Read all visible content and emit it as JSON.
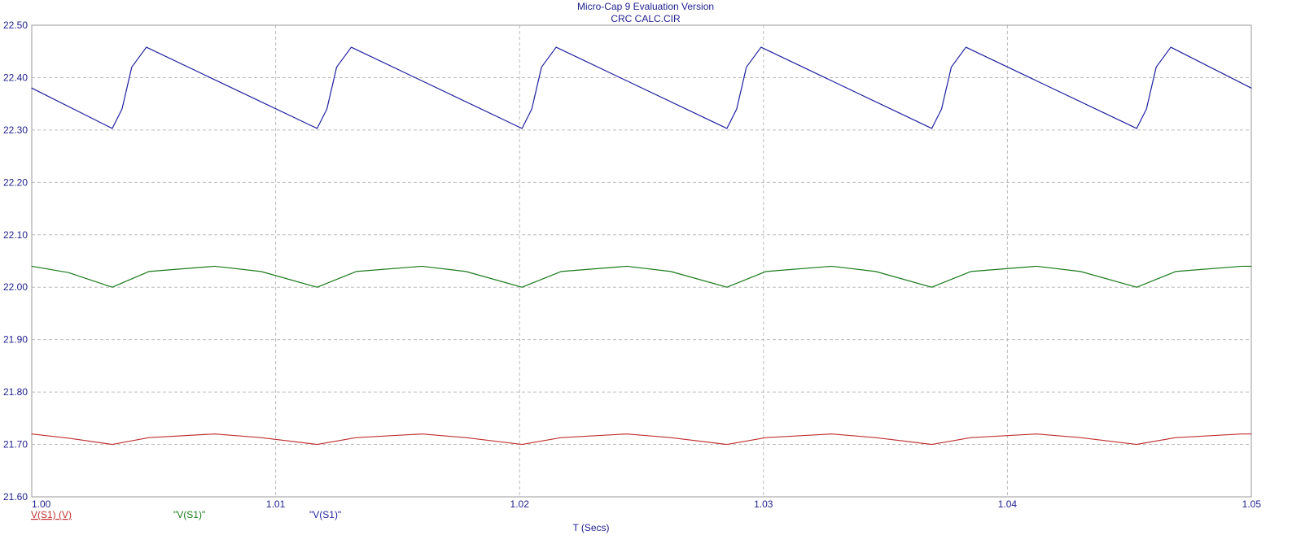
{
  "header": {
    "title": "Micro-Cap 9 Evaluation Version",
    "subtitle": "CRC CALC.CIR"
  },
  "chart_data": {
    "type": "line",
    "title": "Micro-Cap 9 Evaluation Version",
    "subtitle": "CRC CALC.CIR",
    "xlabel": "T (Secs)",
    "ylabel": "",
    "xlim": [
      1.0,
      1.05
    ],
    "ylim": [
      21.6,
      22.5
    ],
    "x_ticks": [
      "1.00",
      "1.01",
      "1.02",
      "1.03",
      "1.04",
      "1.05"
    ],
    "x_tick_values": [
      1.0,
      1.01,
      1.02,
      1.03,
      1.04,
      1.05
    ],
    "y_ticks": [
      "22.50",
      "22.40",
      "22.30",
      "22.20",
      "22.10",
      "22.00",
      "21.90",
      "21.80",
      "21.70",
      "21.60"
    ],
    "y_tick_values": [
      22.5,
      22.4,
      22.3,
      22.2,
      22.1,
      22.0,
      21.9,
      21.8,
      21.7,
      21.6
    ],
    "grid": true,
    "legend": "bottom-left",
    "series": [
      {
        "name": "V(S1) (V)",
        "color": "#c03030",
        "underline": true,
        "x": [
          1.0,
          1.0015,
          1.0033,
          1.0048,
          1.0075,
          1.0094,
          1.0117,
          1.0133,
          1.016,
          1.0178,
          1.0201,
          1.0217,
          1.0244,
          1.0262,
          1.0285,
          1.0301,
          1.0328,
          1.0346,
          1.0369,
          1.0385,
          1.0412,
          1.043,
          1.0453,
          1.0469,
          1.0496,
          1.05
        ],
        "y": [
          21.72,
          21.712,
          21.7,
          21.713,
          21.72,
          21.713,
          21.7,
          21.713,
          21.72,
          21.713,
          21.7,
          21.713,
          21.72,
          21.713,
          21.7,
          21.713,
          21.72,
          21.713,
          21.7,
          21.713,
          21.72,
          21.713,
          21.7,
          21.713,
          21.72,
          21.72
        ]
      },
      {
        "name": "\"V(S1)\"",
        "color": "#1a7a1a",
        "underline": false,
        "x": [
          1.0,
          1.0015,
          1.0033,
          1.0048,
          1.0075,
          1.0094,
          1.0117,
          1.0133,
          1.016,
          1.0178,
          1.0201,
          1.0217,
          1.0244,
          1.0262,
          1.0285,
          1.0301,
          1.0328,
          1.0346,
          1.0369,
          1.0385,
          1.0412,
          1.043,
          1.0453,
          1.0469,
          1.0496,
          1.05
        ],
        "y": [
          22.04,
          22.028,
          22.0,
          22.03,
          22.04,
          22.03,
          22.0,
          22.03,
          22.04,
          22.03,
          22.0,
          22.03,
          22.04,
          22.03,
          22.0,
          22.03,
          22.04,
          22.03,
          22.0,
          22.03,
          22.04,
          22.03,
          22.0,
          22.03,
          22.04,
          22.04
        ]
      },
      {
        "name": "\"V(S1)\"",
        "color": "#1f1fa0",
        "underline": false,
        "x": [
          1.0,
          1.0033,
          1.0037,
          1.0041,
          1.0047,
          1.0117,
          1.0121,
          1.0125,
          1.0131,
          1.0201,
          1.0205,
          1.0209,
          1.0215,
          1.0285,
          1.0289,
          1.0293,
          1.0299,
          1.0369,
          1.0373,
          1.0377,
          1.0383,
          1.0453,
          1.0457,
          1.0461,
          1.0467,
          1.05
        ],
        "y": [
          22.38,
          22.303,
          22.34,
          22.42,
          22.458,
          22.303,
          22.34,
          22.42,
          22.458,
          22.303,
          22.34,
          22.42,
          22.458,
          22.303,
          22.34,
          22.42,
          22.458,
          22.303,
          22.34,
          22.42,
          22.458,
          22.303,
          22.34,
          22.42,
          22.458,
          22.38
        ]
      }
    ]
  }
}
